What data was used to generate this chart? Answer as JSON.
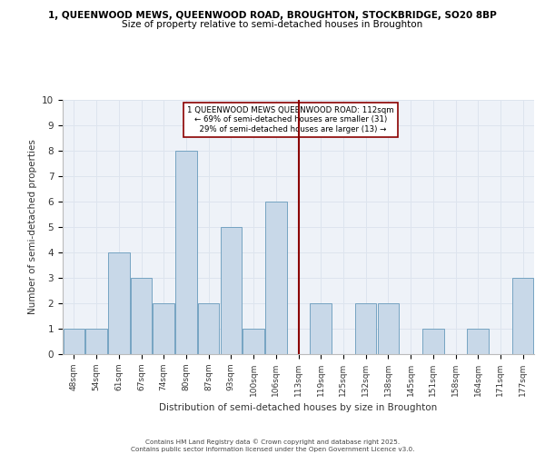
{
  "title_line1": "1, QUEENWOOD MEWS, QUEENWOOD ROAD, BROUGHTON, STOCKBRIDGE, SO20 8BP",
  "title_line2": "Size of property relative to semi-detached houses in Broughton",
  "xlabel": "Distribution of semi-detached houses by size in Broughton",
  "ylabel": "Number of semi-detached properties",
  "footnote": "Contains HM Land Registry data © Crown copyright and database right 2025.\nContains public sector information licensed under the Open Government Licence v3.0.",
  "categories": [
    "48sqm",
    "54sqm",
    "61sqm",
    "67sqm",
    "74sqm",
    "80sqm",
    "87sqm",
    "93sqm",
    "100sqm",
    "106sqm",
    "113sqm",
    "119sqm",
    "125sqm",
    "132sqm",
    "138sqm",
    "145sqm",
    "151sqm",
    "158sqm",
    "164sqm",
    "171sqm",
    "177sqm"
  ],
  "values": [
    1,
    1,
    4,
    3,
    2,
    8,
    2,
    5,
    1,
    6,
    0,
    2,
    0,
    2,
    2,
    0,
    1,
    0,
    1,
    0,
    3
  ],
  "bar_color": "#c8d8e8",
  "bar_edge_color": "#6699bb",
  "reference_line_x": 10,
  "reference_line_label": "1 QUEENWOOD MEWS QUEENWOOD ROAD: 112sqm",
  "reference_pct_smaller": "69% of semi-detached houses are smaller (31)",
  "reference_pct_larger": "29% of semi-detached houses are larger (13)",
  "ref_line_color": "#8b0000",
  "ylim": [
    0,
    10
  ],
  "yticks": [
    0,
    1,
    2,
    3,
    4,
    5,
    6,
    7,
    8,
    9,
    10
  ],
  "grid_color": "#dde4ee",
  "bg_color": "#eef2f8"
}
